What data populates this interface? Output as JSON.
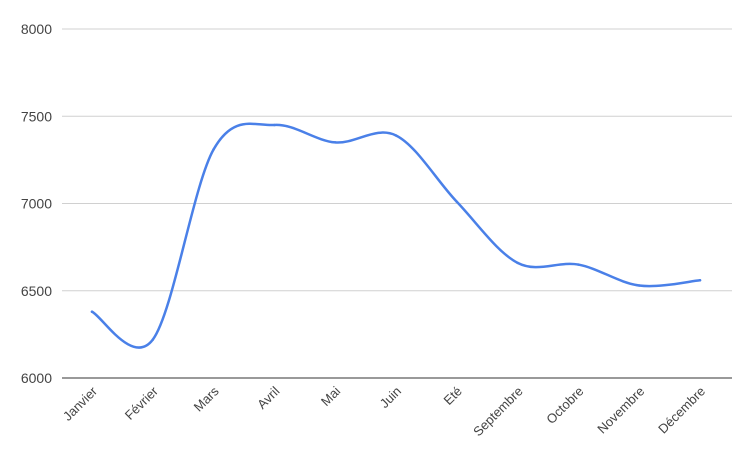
{
  "chart_data": {
    "type": "line",
    "categories": [
      "Janvier",
      "Février",
      "Mars",
      "Avril",
      "Mai",
      "Juin",
      "Eté",
      "Septembre",
      "Octobre",
      "Novembre",
      "Décembre"
    ],
    "series": [
      {
        "values": [
          6380,
          6220,
          7310,
          7450,
          7350,
          7390,
          7010,
          6660,
          6650,
          6530,
          6560
        ],
        "color": "#4a80e8"
      }
    ],
    "y_ticks": [
      "6000",
      "6500",
      "7000",
      "7500",
      "8000"
    ],
    "ylim": [
      6000,
      8000
    ],
    "grid": true,
    "legend": "none",
    "smooth": true
  }
}
